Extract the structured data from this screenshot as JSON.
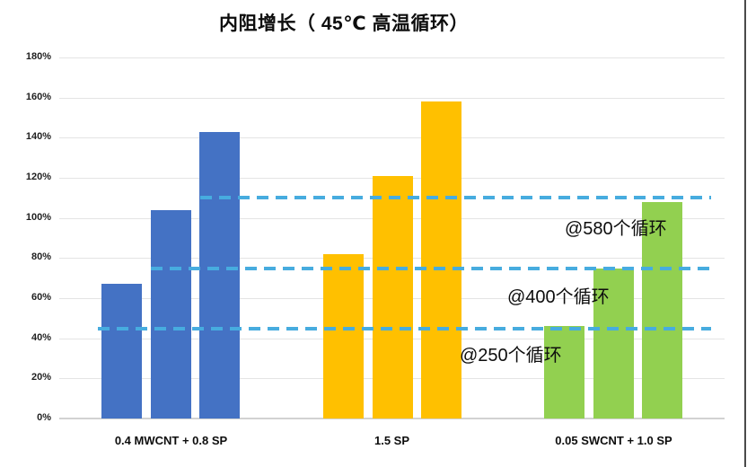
{
  "page": {
    "background": "#FFFFFF",
    "right_border_color": "#4A4A4A"
  },
  "chart_data": {
    "type": "bar",
    "title": "内阻增长（ 45℃ 高温循环）",
    "xlabel": "",
    "ylabel": "",
    "categories": [
      "0.4 MWCNT + 0.8 SP",
      "1.5 SP",
      "0.05 SWCNT + 1.0 SP"
    ],
    "series": [
      {
        "name": "@250个循环",
        "values": [
          67,
          82,
          46
        ]
      },
      {
        "name": "@400个循环",
        "values": [
          104,
          121,
          75
        ]
      },
      {
        "name": "@580个循环",
        "values": [
          143,
          158,
          108
        ]
      }
    ],
    "group_colors": [
      "#4472C4",
      "#FFC000",
      "#92D050"
    ],
    "y_axis": {
      "min": 0,
      "max": 180,
      "step": 20,
      "tick_labels": [
        "0%",
        "20%",
        "40%",
        "60%",
        "80%",
        "100%",
        "120%",
        "140%",
        "160%",
        "180%"
      ]
    },
    "grid": true,
    "gridline_color": "#E4E4E4",
    "axis_line_color": "#D2D2D2",
    "legend": "none",
    "reference_lines": [
      {
        "value": 45,
        "label": "@250个循环",
        "color": "#47ACDF"
      },
      {
        "value": 75,
        "label": "@400个循环",
        "color": "#47ACDF"
      },
      {
        "value": 110,
        "label": "@580个循环",
        "color": "#47ACDF"
      }
    ]
  }
}
